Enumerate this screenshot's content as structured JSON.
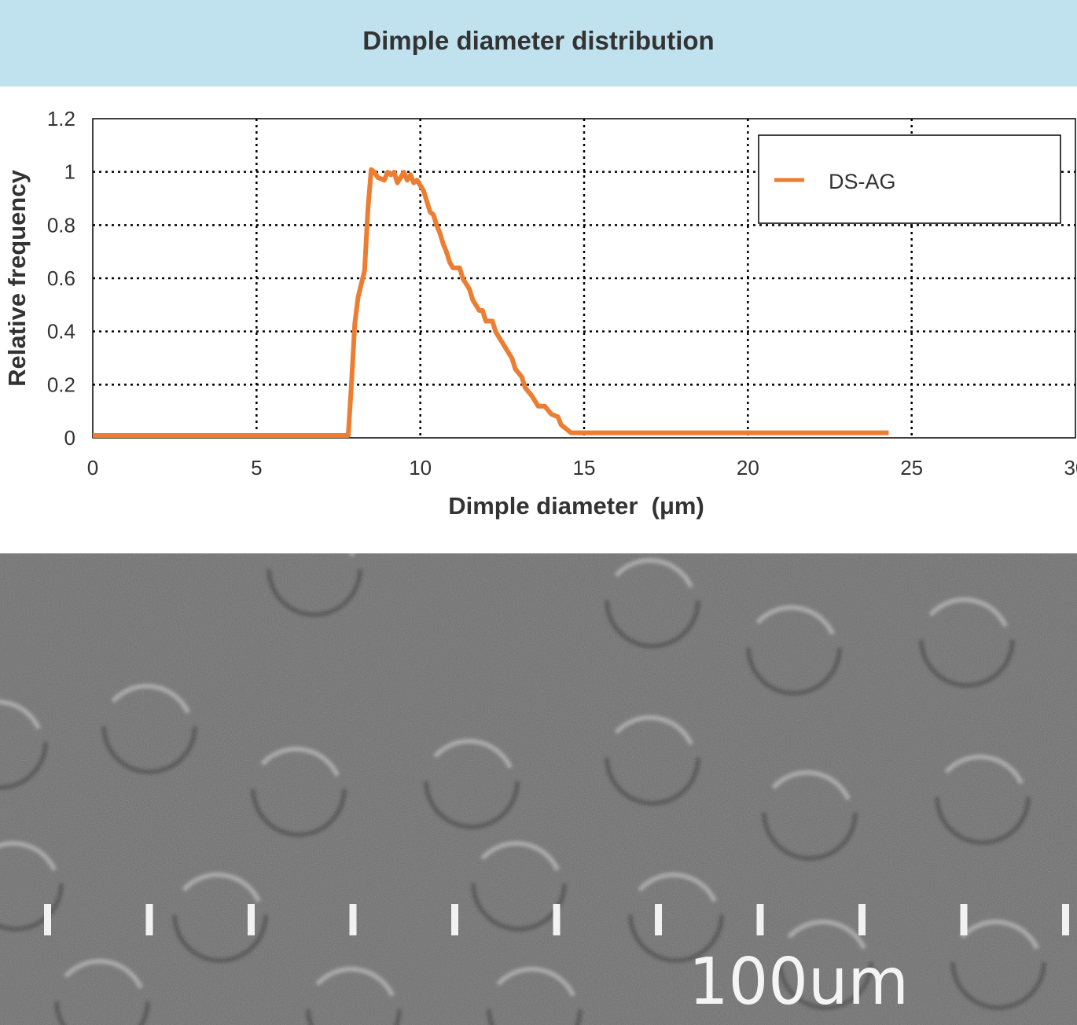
{
  "banner": {
    "title": "Dimple diameter distribution"
  },
  "chart_data": {
    "type": "line",
    "title": "Dimple diameter distribution",
    "xlabel": "Dimple diameter  (μm)",
    "ylabel": "Relative frequency",
    "xlim": [
      0,
      30
    ],
    "ylim": [
      0,
      1.2
    ],
    "xticks": [
      0,
      5,
      10,
      15,
      20,
      25,
      30
    ],
    "yticks": [
      0,
      0.2,
      0.4,
      0.6,
      0.8,
      1,
      1.2
    ],
    "xtick_labels": [
      "0",
      "5",
      "10",
      "15",
      "20",
      "25",
      "30"
    ],
    "ytick_labels": [
      "0",
      "0.2",
      "0.4",
      "0.6",
      "0.8",
      "1",
      "1.2"
    ],
    "grid": true,
    "legend_position": "top-right",
    "colors": {
      "series": "#ed7d31",
      "grid": "#000000",
      "text": "#333333"
    },
    "series": [
      {
        "name": "DS-AG",
        "x": [
          0,
          7.8,
          7.9,
          8.0,
          8.1,
          8.3,
          8.4,
          8.5,
          8.6,
          8.7,
          8.9,
          9.0,
          9.1,
          9.2,
          9.3,
          9.5,
          9.6,
          9.7,
          9.8,
          9.9,
          10.0,
          10.1,
          10.2,
          10.3,
          10.4,
          10.5,
          10.6,
          10.7,
          10.8,
          10.9,
          11.0,
          11.2,
          11.3,
          11.5,
          11.6,
          11.8,
          11.9,
          12.0,
          12.2,
          12.3,
          12.5,
          12.6,
          12.8,
          12.9,
          13.1,
          13.2,
          13.4,
          13.6,
          13.8,
          14.0,
          14.2,
          14.3,
          14.5,
          14.6,
          14.7,
          15.0,
          24.3
        ],
        "y": [
          0,
          0,
          0.2,
          0.42,
          0.52,
          0.62,
          0.85,
          1.0,
          0.99,
          0.97,
          0.96,
          0.99,
          0.98,
          0.99,
          0.95,
          0.99,
          0.96,
          0.98,
          0.95,
          0.96,
          0.94,
          0.92,
          0.88,
          0.84,
          0.83,
          0.79,
          0.76,
          0.72,
          0.69,
          0.65,
          0.63,
          0.63,
          0.59,
          0.55,
          0.51,
          0.47,
          0.47,
          0.43,
          0.43,
          0.39,
          0.35,
          0.33,
          0.29,
          0.25,
          0.22,
          0.18,
          0.15,
          0.11,
          0.11,
          0.08,
          0.07,
          0.04,
          0.02,
          0.01,
          0.01,
          0.01,
          0.01
        ]
      }
    ]
  },
  "micrograph": {
    "scale_label": "100um"
  }
}
